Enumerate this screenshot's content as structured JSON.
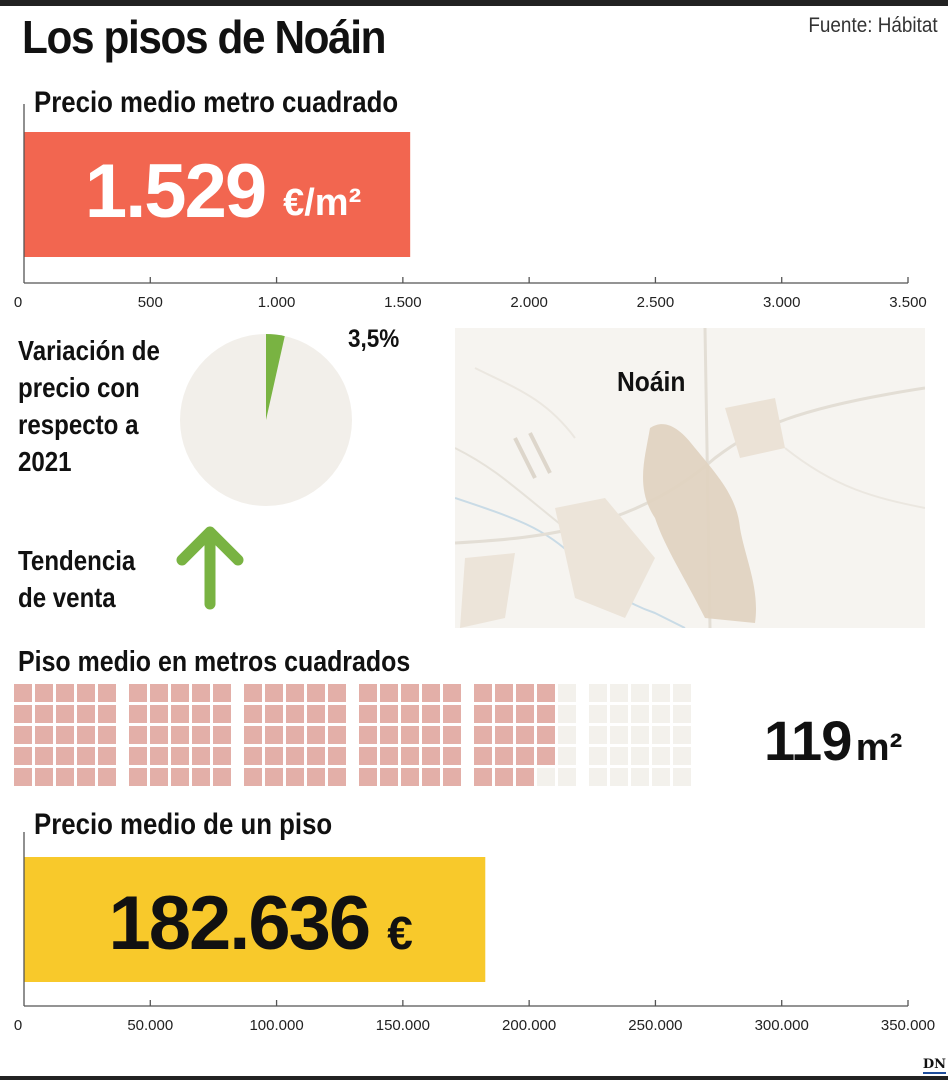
{
  "header": {
    "title": "Los pisos de Noáin",
    "source": "Fuente: Hábitat"
  },
  "colors": {
    "price_m2_bar": "#f26650",
    "variation_fill": "#79b342",
    "pie_bg": "#f2efea",
    "waffle_on": "#e3afa8",
    "waffle_off": "#f3f1ec",
    "price_total_bar": "#f8c92b"
  },
  "price_m2": {
    "label": "Precio medio metro cuadrado",
    "value_number": "1.529",
    "value_unit": "€/m²"
  },
  "variation": {
    "label_lines": [
      "Variación de",
      "precio con",
      "respecto a",
      "2021"
    ],
    "value_label": "3,5%"
  },
  "trend": {
    "label_lines": [
      "Tendencia",
      "de venta"
    ],
    "icon": "arrow-up-icon"
  },
  "map": {
    "place_name": "Noáin"
  },
  "waffle": {
    "label": "Piso medio en metros cuadrados",
    "value_number": "119",
    "value_unit": "m²"
  },
  "price_total": {
    "label": "Precio medio de un piso",
    "value_number": "182.636",
    "value_unit": "€"
  },
  "logo": "DN",
  "chart_data": [
    {
      "type": "bar",
      "title": "Precio medio metro cuadrado",
      "values": [
        1529
      ],
      "xlim": [
        0,
        3500
      ],
      "ticks": [
        0,
        500,
        1000,
        1500,
        2000,
        2500,
        3000,
        3500
      ],
      "tick_labels": [
        "0",
        "500",
        "1.000",
        "1.500",
        "2.000",
        "2.500",
        "3.000",
        "3.500"
      ]
    },
    {
      "type": "pie",
      "title": "Variación de precio con respecto a 2021",
      "values": [
        3.5
      ],
      "total": 100
    },
    {
      "type": "waffle",
      "title": "Piso medio en metros cuadrados",
      "values": [
        119
      ],
      "total": 150
    },
    {
      "type": "bar",
      "title": "Precio medio de un piso",
      "values": [
        182636
      ],
      "xlim": [
        0,
        350000
      ],
      "ticks": [
        0,
        50000,
        100000,
        150000,
        200000,
        250000,
        300000,
        350000
      ],
      "tick_labels": [
        "0",
        "50.000",
        "100.000",
        "150.000",
        "200.000",
        "250.000",
        "300.000",
        "350.000"
      ]
    }
  ]
}
